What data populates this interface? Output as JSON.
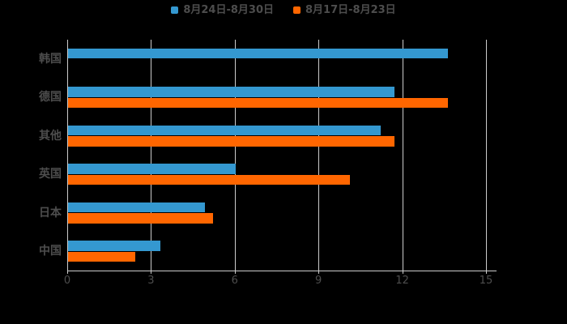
{
  "background": "#000000",
  "chart_data": {
    "type": "bar",
    "orientation": "horizontal",
    "title": "",
    "xlabel": "",
    "ylabel": "",
    "categories": [
      "韩国",
      "德国",
      "其他",
      "英国",
      "日本",
      "中国"
    ],
    "series": [
      {
        "name": "8月24日-8月30日",
        "color": "#3498d0",
        "values": [
          13.6,
          11.7,
          11.2,
          6.0,
          4.9,
          3.3
        ]
      },
      {
        "name": "8月17日-8月23日",
        "color": "#ff6600",
        "values": [
          null,
          13.6,
          11.7,
          10.1,
          5.2,
          2.4
        ]
      }
    ],
    "x_ticks": [
      0,
      3,
      6,
      9,
      12,
      15
    ],
    "xlim": [
      0,
      15.35
    ],
    "grid": true,
    "legend_position": "top",
    "text_color": "#4d4d4d",
    "gridline_color": "#cccccc",
    "axis_color": "#cccccc"
  }
}
